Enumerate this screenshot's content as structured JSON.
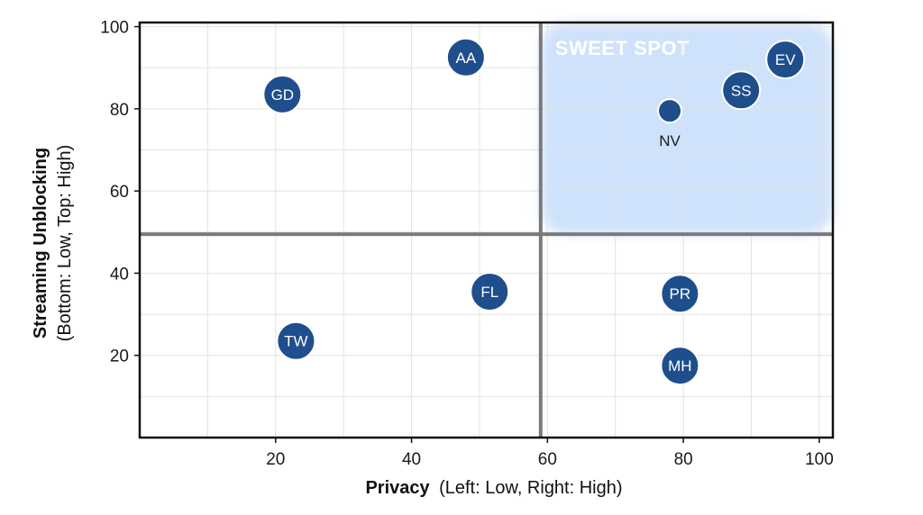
{
  "chart_data": {
    "type": "scatter",
    "xlabel": "Privacy",
    "xlabel_detail": "(Left: Low, Right: High)",
    "ylabel": "Streaming Unblocking",
    "ylabel_detail": "(Bottom: Low, Top: High)",
    "xlim": [
      0,
      102
    ],
    "ylim": [
      0,
      101
    ],
    "x_ticks": [
      20,
      40,
      60,
      80,
      100
    ],
    "y_ticks": [
      20,
      40,
      60,
      80,
      100
    ],
    "grid": true,
    "divider_x": 59,
    "divider_y": 49.5,
    "highlight_zone": {
      "label": "SWEET SPOT",
      "x_range": [
        59,
        102
      ],
      "y_range": [
        49.5,
        101
      ],
      "color": "#cfe2fb"
    },
    "points": [
      {
        "label": "GD",
        "x": 21,
        "y": 83.5
      },
      {
        "label": "AA",
        "x": 48,
        "y": 92.5
      },
      {
        "label": "EV",
        "x": 95,
        "y": 92
      },
      {
        "label": "SS",
        "x": 88.5,
        "y": 84.5
      },
      {
        "label": "NV",
        "x": 78,
        "y": 79.5,
        "label_position": "below"
      },
      {
        "label": "FL",
        "x": 51.5,
        "y": 35.5
      },
      {
        "label": "PR",
        "x": 79.5,
        "y": 35
      },
      {
        "label": "TW",
        "x": 23,
        "y": 23.5
      },
      {
        "label": "MH",
        "x": 79.5,
        "y": 17.5
      }
    ],
    "colors": {
      "marker": "#1f4e8c",
      "marker_border": "#ffffff",
      "divider": "#7a7a7a",
      "grid": "#e2e2e2",
      "frame": "#111111"
    }
  }
}
